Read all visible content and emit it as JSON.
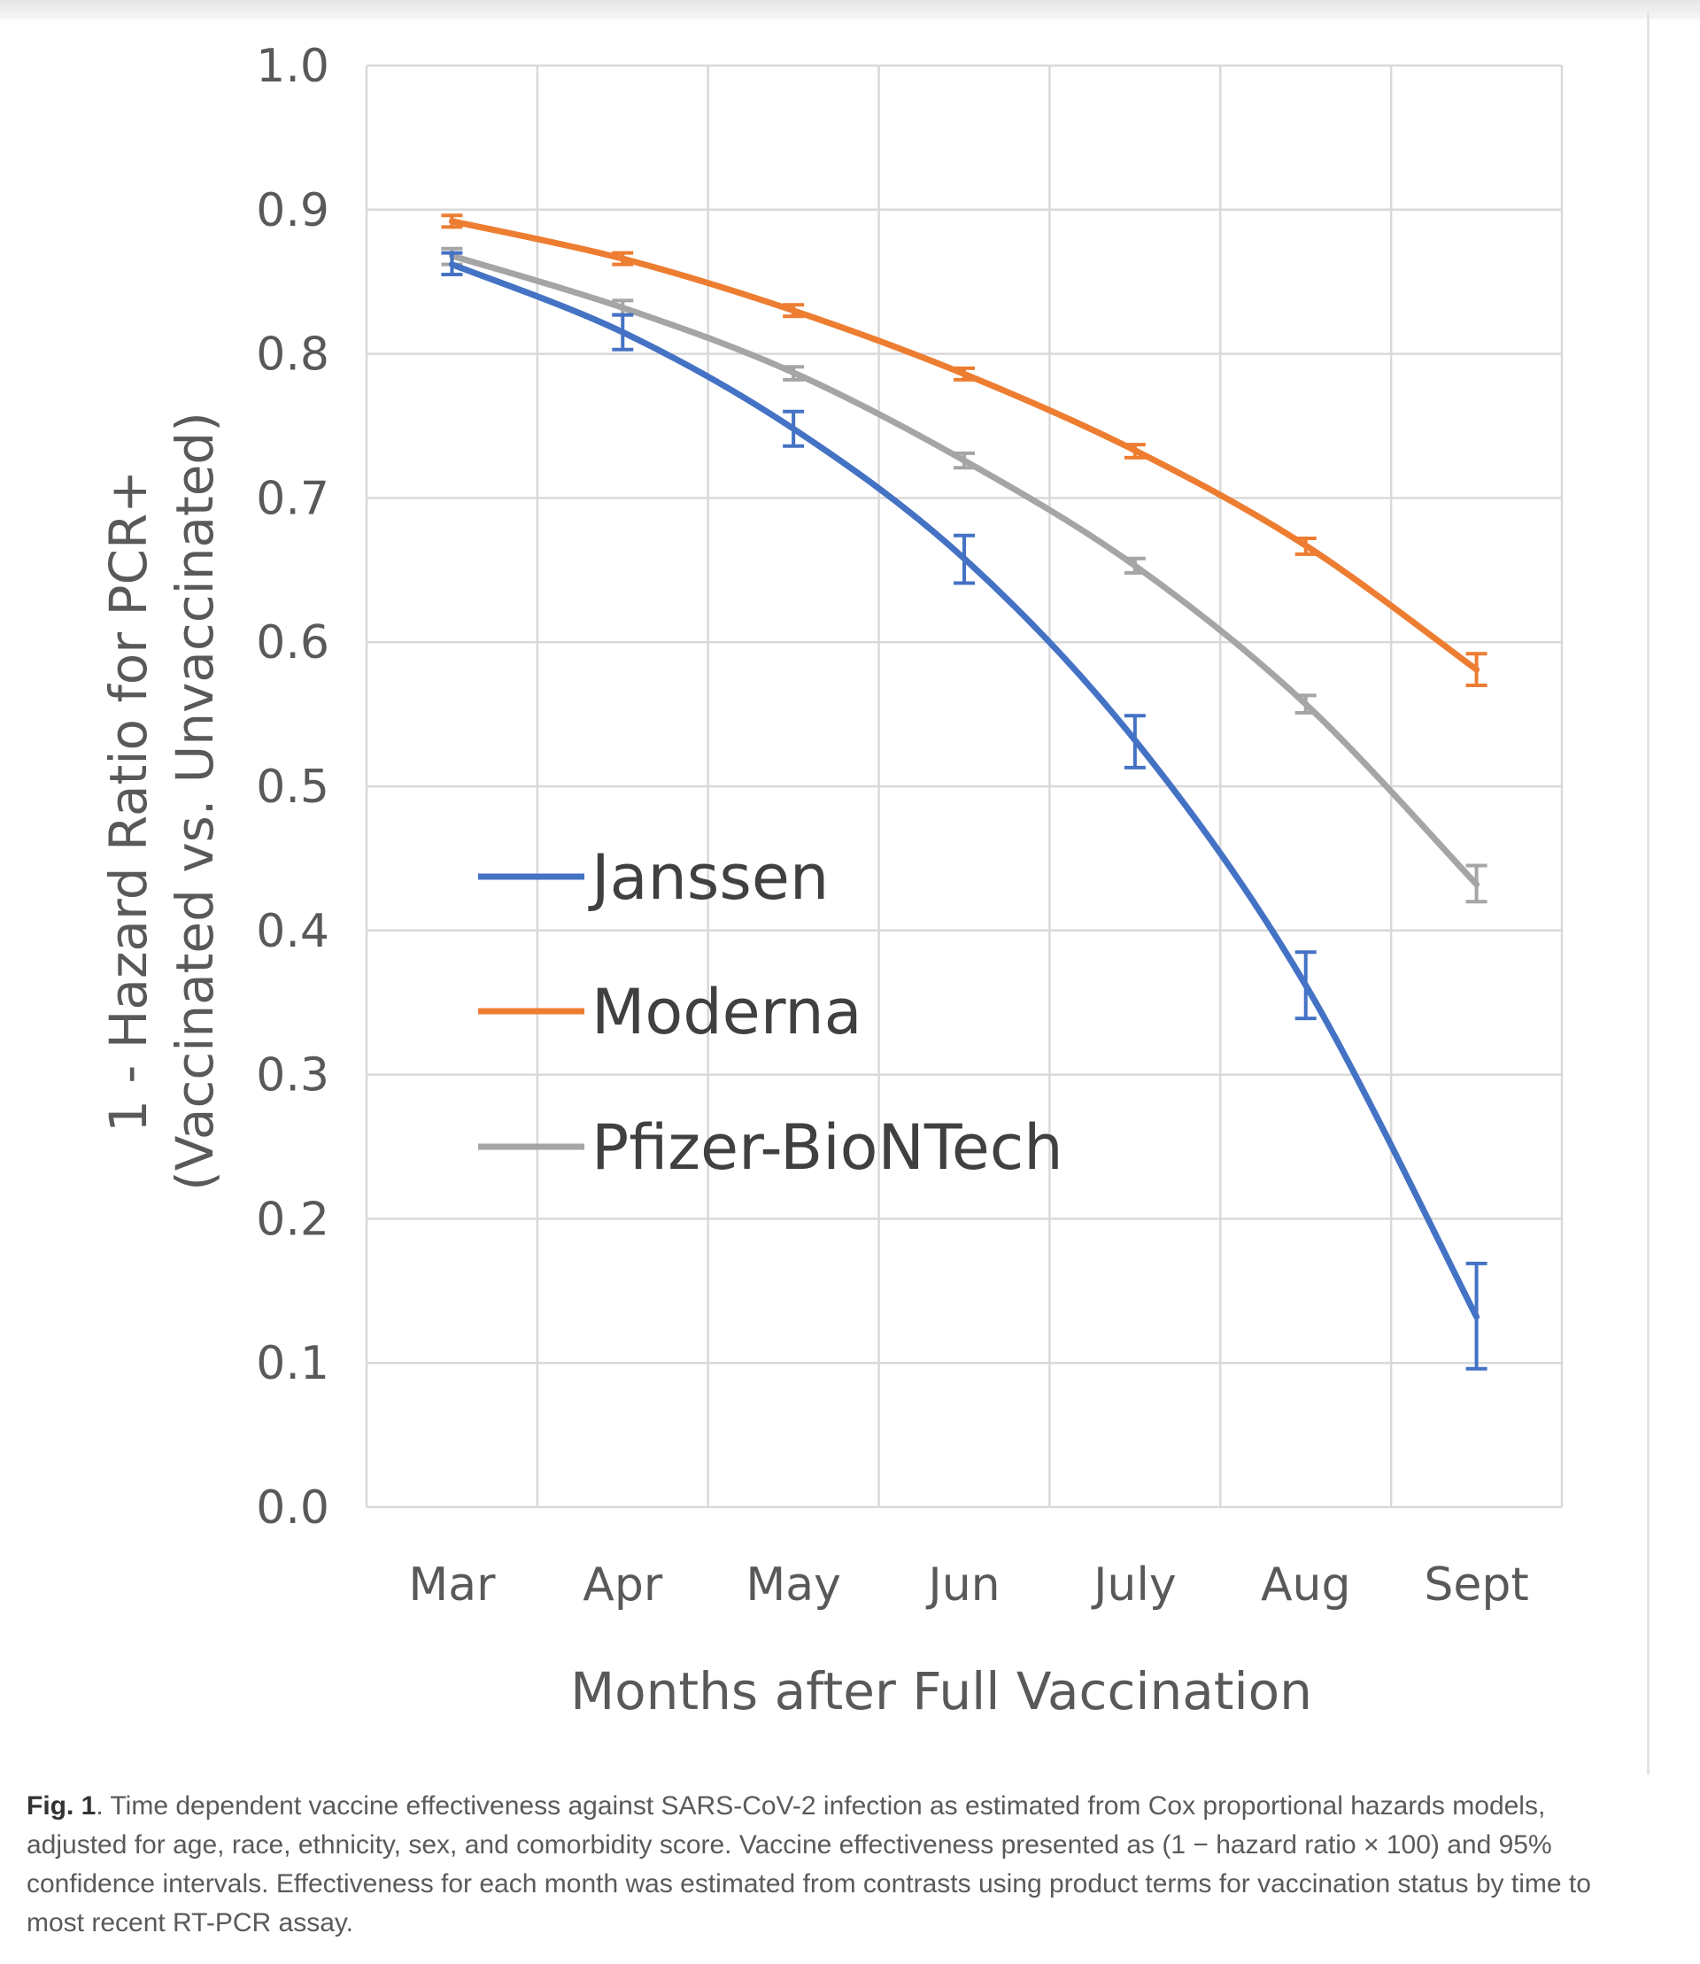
{
  "chart_data": {
    "type": "line",
    "categories": [
      "Mar",
      "Apr",
      "May",
      "Jun",
      "July",
      "Aug",
      "Sept"
    ],
    "xlabel": "Months after Full Vaccination",
    "ylabel_lines": [
      "1 - Hazard Ratio for PCR+",
      "(Vaccinated vs. Unvaccinated)"
    ],
    "ylim": [
      0.0,
      1.0
    ],
    "yticks": [
      "0.0",
      "0.1",
      "0.2",
      "0.3",
      "0.4",
      "0.5",
      "0.6",
      "0.7",
      "0.8",
      "0.9",
      "1.0"
    ],
    "grid": true,
    "legend_position": "lower-left",
    "error_bars": true,
    "series": [
      {
        "name": "Janssen",
        "color": "#4472c4",
        "values": [
          0.862,
          0.815,
          0.748,
          0.658,
          0.532,
          0.362,
          0.132
        ],
        "ci_low": [
          0.855,
          0.803,
          0.736,
          0.641,
          0.513,
          0.339,
          0.096
        ],
        "ci_high": [
          0.87,
          0.827,
          0.76,
          0.674,
          0.549,
          0.385,
          0.169
        ]
      },
      {
        "name": "Moderna",
        "color": "#ed7d31",
        "values": [
          0.892,
          0.866,
          0.83,
          0.786,
          0.733,
          0.667,
          0.581
        ],
        "ci_low": [
          0.888,
          0.862,
          0.826,
          0.782,
          0.728,
          0.661,
          0.57
        ],
        "ci_high": [
          0.896,
          0.87,
          0.834,
          0.79,
          0.737,
          0.672,
          0.592
        ]
      },
      {
        "name": "Pfizer-BioNTech",
        "color": "#a5a5a5",
        "values": [
          0.868,
          0.832,
          0.787,
          0.726,
          0.653,
          0.557,
          0.432
        ],
        "ci_low": [
          0.862,
          0.827,
          0.782,
          0.721,
          0.648,
          0.551,
          0.42
        ],
        "ci_high": [
          0.873,
          0.837,
          0.791,
          0.731,
          0.658,
          0.563,
          0.445
        ]
      }
    ]
  },
  "caption": {
    "label": "Fig. 1",
    "text": ". Time dependent vaccine effectiveness against SARS-CoV-2 infection as estimated from Cox proportional hazards models, adjusted for age, race, ethnicity, sex, and comorbidity score. Vaccine effectiveness presented as (1 − hazard ratio × 100) and 95% confidence intervals. Effectiveness for each month was estimated from contrasts using product terms for vaccination status by time to most recent RT-PCR assay."
  }
}
